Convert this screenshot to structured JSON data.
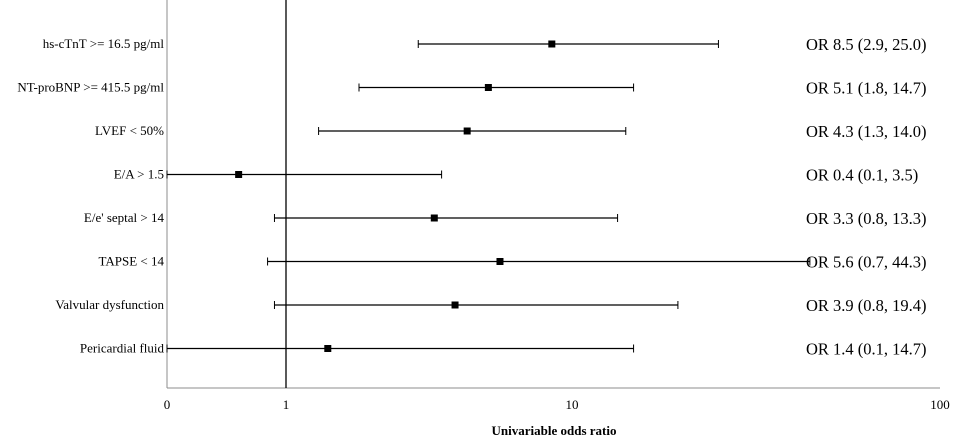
{
  "chart_data": {
    "type": "forest",
    "xlabel": "Univariable odds ratio",
    "x_scale": "log",
    "xlim": [
      0.1,
      100
    ],
    "x_ticks": [
      {
        "value": 0.1,
        "label": "0"
      },
      {
        "value": 1,
        "label": "1"
      },
      {
        "value": 10,
        "label": "10"
      },
      {
        "value": 100,
        "label": "100"
      }
    ],
    "reference_line": 1,
    "rows": [
      {
        "label": "hs-cTnT >= 16.5 pg/ml",
        "or": 8.5,
        "lower": 2.9,
        "upper": 25.0,
        "annotation": "OR 8.5 (2.9, 25.0)"
      },
      {
        "label": "NT-proBNP >= 415.5 pg/ml",
        "or": 5.1,
        "lower": 1.8,
        "upper": 14.7,
        "annotation": "OR 5.1 (1.8, 14.7)"
      },
      {
        "label": "LVEF < 50%",
        "or": 4.3,
        "lower": 1.3,
        "upper": 14.0,
        "annotation": "OR 4.3 (1.3, 14.0)"
      },
      {
        "label": "E/A > 1.5",
        "or": 0.4,
        "lower": 0.1,
        "upper": 3.5,
        "annotation": "OR 0.4 (0.1, 3.5)"
      },
      {
        "label": "E/e' septal > 14",
        "or": 3.3,
        "lower": 0.8,
        "upper": 13.3,
        "annotation": "OR 3.3 (0.8, 13.3)"
      },
      {
        "label": "TAPSE < 14",
        "or": 5.6,
        "lower": 0.7,
        "upper": 44.3,
        "annotation": "OR 5.6 (0.7, 44.3)"
      },
      {
        "label": "Valvular dysfunction",
        "or": 3.9,
        "lower": 0.8,
        "upper": 19.4,
        "annotation": "OR 3.9 (0.8, 19.4)"
      },
      {
        "label": "Pericardial fluid",
        "or": 1.4,
        "lower": 0.1,
        "upper": 14.7,
        "annotation": "OR 1.4 (0.1, 14.7)"
      }
    ]
  }
}
